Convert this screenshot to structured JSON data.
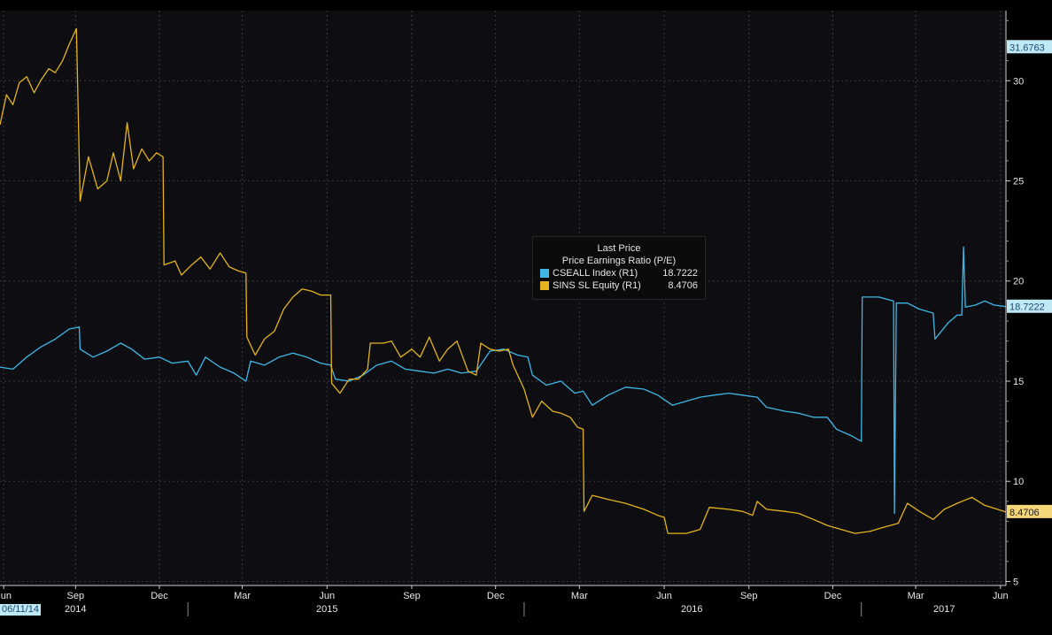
{
  "chart_data": {
    "type": "line",
    "title": "",
    "ylabel": "",
    "y_axis_position": "right",
    "ylim": [
      4.8,
      33.5
    ],
    "y_ticks": [
      5,
      10,
      15,
      20,
      25,
      30
    ],
    "grid": true,
    "x_start": "2014-06-11",
    "x_end": "2017-06-07",
    "x_tick_labels": [
      {
        "date": "2014-06-15",
        "label": "Jun"
      },
      {
        "date": "2014-09-01",
        "label": "Sep"
      },
      {
        "date": "2014-12-01",
        "label": "Dec"
      },
      {
        "date": "2015-03-01",
        "label": "Mar"
      },
      {
        "date": "2015-06-01",
        "label": "Jun"
      },
      {
        "date": "2015-09-01",
        "label": "Sep"
      },
      {
        "date": "2015-12-01",
        "label": "Dec"
      },
      {
        "date": "2016-03-01",
        "label": "Mar"
      },
      {
        "date": "2016-06-01",
        "label": "Jun"
      },
      {
        "date": "2016-09-01",
        "label": "Sep"
      },
      {
        "date": "2016-12-01",
        "label": "Dec"
      },
      {
        "date": "2017-03-01",
        "label": "Mar"
      },
      {
        "date": "2017-06-01",
        "label": "Jun"
      }
    ],
    "year_labels": [
      {
        "date": "2014-09-01",
        "label": "2014"
      },
      {
        "date": "2015-06-01",
        "label": "2015"
      },
      {
        "date": "2016-07-01",
        "label": "2016"
      },
      {
        "date": "2017-04-01",
        "label": "2017"
      }
    ],
    "year_boundaries": [
      "2015-01-01",
      "2016-01-01",
      "2017-01-01"
    ],
    "start_date_label": "06/11/14",
    "legend": {
      "title": "Last Price",
      "subtitle": "Price Earnings Ratio (P/E)",
      "placement": "center"
    },
    "series": [
      {
        "name": "CSEALL Index  (R1)",
        "legend_value": "18.7222",
        "last_label": "18.7222",
        "color": "#3fb7e6",
        "label_bg": "#bfe9f5",
        "label_fg": "#1c4a6e",
        "points": [
          [
            "2014-06-11",
            15.7
          ],
          [
            "2014-06-25",
            15.6
          ],
          [
            "2014-07-10",
            16.2
          ],
          [
            "2014-07-25",
            16.7
          ],
          [
            "2014-08-10",
            17.1
          ],
          [
            "2014-08-25",
            17.6
          ],
          [
            "2014-09-05",
            17.7
          ],
          [
            "2014-09-06",
            16.6
          ],
          [
            "2014-09-20",
            16.2
          ],
          [
            "2014-10-05",
            16.5
          ],
          [
            "2014-10-20",
            16.9
          ],
          [
            "2014-11-01",
            16.6
          ],
          [
            "2014-11-15",
            16.1
          ],
          [
            "2014-12-01",
            16.2
          ],
          [
            "2014-12-15",
            15.9
          ],
          [
            "2015-01-01",
            16.0
          ],
          [
            "2015-01-10",
            15.3
          ],
          [
            "2015-01-20",
            16.2
          ],
          [
            "2015-02-05",
            15.7
          ],
          [
            "2015-02-20",
            15.4
          ],
          [
            "2015-03-05",
            15.0
          ],
          [
            "2015-03-10",
            16.0
          ],
          [
            "2015-03-25",
            15.8
          ],
          [
            "2015-04-10",
            16.2
          ],
          [
            "2015-04-25",
            16.4
          ],
          [
            "2015-05-10",
            16.2
          ],
          [
            "2015-05-25",
            15.9
          ],
          [
            "2015-06-05",
            15.8
          ],
          [
            "2015-06-10",
            15.1
          ],
          [
            "2015-06-25",
            15.0
          ],
          [
            "2015-07-10",
            15.3
          ],
          [
            "2015-07-25",
            15.8
          ],
          [
            "2015-08-10",
            16.0
          ],
          [
            "2015-08-25",
            15.6
          ],
          [
            "2015-09-10",
            15.5
          ],
          [
            "2015-09-25",
            15.4
          ],
          [
            "2015-10-10",
            15.6
          ],
          [
            "2015-10-25",
            15.4
          ],
          [
            "2015-11-10",
            15.5
          ],
          [
            "2015-11-25",
            16.5
          ],
          [
            "2015-12-10",
            16.6
          ],
          [
            "2015-12-25",
            16.3
          ],
          [
            "2016-01-05",
            16.2
          ],
          [
            "2016-01-10",
            15.3
          ],
          [
            "2016-01-25",
            14.8
          ],
          [
            "2016-02-10",
            15.0
          ],
          [
            "2016-02-25",
            14.4
          ],
          [
            "2016-03-05",
            14.5
          ],
          [
            "2016-03-15",
            13.8
          ],
          [
            "2016-04-01",
            14.3
          ],
          [
            "2016-04-20",
            14.7
          ],
          [
            "2016-05-10",
            14.6
          ],
          [
            "2016-05-25",
            14.3
          ],
          [
            "2016-06-10",
            13.8
          ],
          [
            "2016-06-25",
            14.0
          ],
          [
            "2016-07-10",
            14.2
          ],
          [
            "2016-07-25",
            14.3
          ],
          [
            "2016-08-10",
            14.4
          ],
          [
            "2016-08-25",
            14.3
          ],
          [
            "2016-09-10",
            14.2
          ],
          [
            "2016-09-20",
            13.7
          ],
          [
            "2016-10-10",
            13.5
          ],
          [
            "2016-10-25",
            13.4
          ],
          [
            "2016-11-10",
            13.2
          ],
          [
            "2016-11-25",
            13.2
          ],
          [
            "2016-12-05",
            12.6
          ],
          [
            "2016-12-20",
            12.3
          ],
          [
            "2017-01-01",
            12.0
          ],
          [
            "2017-01-02",
            19.2
          ],
          [
            "2017-01-20",
            19.2
          ],
          [
            "2017-02-05",
            19.0
          ],
          [
            "2017-02-06",
            8.4
          ],
          [
            "2017-02-08",
            18.9
          ],
          [
            "2017-02-20",
            18.9
          ],
          [
            "2017-03-05",
            18.6
          ],
          [
            "2017-03-20",
            18.4
          ],
          [
            "2017-03-22",
            17.1
          ],
          [
            "2017-04-05",
            17.9
          ],
          [
            "2017-04-15",
            18.3
          ],
          [
            "2017-04-20",
            18.3
          ],
          [
            "2017-04-22",
            21.7
          ],
          [
            "2017-04-24",
            18.7
          ],
          [
            "2017-05-05",
            18.8
          ],
          [
            "2017-05-15",
            19.0
          ],
          [
            "2017-05-25",
            18.8
          ],
          [
            "2017-06-07",
            18.72
          ]
        ]
      },
      {
        "name": "SINS SL Equity  (R1)",
        "legend_value": "8.4706",
        "last_label": "8.4706",
        "color": "#e2b31e",
        "label_bg": "#f5d77a",
        "label_fg": "#1a1a1a",
        "points": [
          [
            "2014-06-11",
            27.8
          ],
          [
            "2014-06-18",
            29.3
          ],
          [
            "2014-06-25",
            28.8
          ],
          [
            "2014-07-02",
            29.9
          ],
          [
            "2014-07-10",
            30.2
          ],
          [
            "2014-07-18",
            29.4
          ],
          [
            "2014-07-25",
            30.0
          ],
          [
            "2014-08-03",
            30.6
          ],
          [
            "2014-08-10",
            30.4
          ],
          [
            "2014-08-18",
            31.0
          ],
          [
            "2014-08-25",
            31.8
          ],
          [
            "2014-09-02",
            32.6
          ],
          [
            "2014-09-06",
            24.0
          ],
          [
            "2014-09-15",
            26.2
          ],
          [
            "2014-09-25",
            24.6
          ],
          [
            "2014-10-05",
            25.0
          ],
          [
            "2014-10-12",
            26.4
          ],
          [
            "2014-10-20",
            25.0
          ],
          [
            "2014-10-27",
            27.9
          ],
          [
            "2014-11-03",
            25.6
          ],
          [
            "2014-11-12",
            26.6
          ],
          [
            "2014-11-20",
            26.0
          ],
          [
            "2014-11-28",
            26.4
          ],
          [
            "2014-12-05",
            26.2
          ],
          [
            "2014-12-06",
            20.8
          ],
          [
            "2014-12-18",
            21.0
          ],
          [
            "2014-12-25",
            20.3
          ],
          [
            "2015-01-05",
            20.8
          ],
          [
            "2015-01-15",
            21.2
          ],
          [
            "2015-01-25",
            20.6
          ],
          [
            "2015-02-05",
            21.4
          ],
          [
            "2015-02-15",
            20.7
          ],
          [
            "2015-02-25",
            20.5
          ],
          [
            "2015-03-05",
            20.4
          ],
          [
            "2015-03-06",
            17.2
          ],
          [
            "2015-03-15",
            16.3
          ],
          [
            "2015-03-25",
            17.1
          ],
          [
            "2015-04-05",
            17.5
          ],
          [
            "2015-04-15",
            18.6
          ],
          [
            "2015-04-25",
            19.2
          ],
          [
            "2015-05-05",
            19.6
          ],
          [
            "2015-05-15",
            19.5
          ],
          [
            "2015-05-25",
            19.3
          ],
          [
            "2015-06-05",
            19.3
          ],
          [
            "2015-06-06",
            14.9
          ],
          [
            "2015-06-15",
            14.4
          ],
          [
            "2015-06-25",
            15.1
          ],
          [
            "2015-07-05",
            15.1
          ],
          [
            "2015-07-15",
            15.6
          ],
          [
            "2015-07-18",
            16.9
          ],
          [
            "2015-08-01",
            16.9
          ],
          [
            "2015-08-10",
            17.0
          ],
          [
            "2015-08-20",
            16.2
          ],
          [
            "2015-09-01",
            16.6
          ],
          [
            "2015-09-10",
            16.2
          ],
          [
            "2015-09-20",
            17.2
          ],
          [
            "2015-10-01",
            16.0
          ],
          [
            "2015-10-10",
            16.6
          ],
          [
            "2015-10-20",
            17.0
          ],
          [
            "2015-11-01",
            15.5
          ],
          [
            "2015-11-10",
            15.3
          ],
          [
            "2015-11-15",
            16.9
          ],
          [
            "2015-11-25",
            16.6
          ],
          [
            "2015-12-05",
            16.5
          ],
          [
            "2015-12-15",
            16.6
          ],
          [
            "2015-12-20",
            15.8
          ],
          [
            "2016-01-01",
            14.6
          ],
          [
            "2016-01-10",
            13.2
          ],
          [
            "2016-01-20",
            14.0
          ],
          [
            "2016-02-01",
            13.5
          ],
          [
            "2016-02-10",
            13.4
          ],
          [
            "2016-02-20",
            13.2
          ],
          [
            "2016-02-28",
            12.7
          ],
          [
            "2016-03-05",
            12.6
          ],
          [
            "2016-03-06",
            8.5
          ],
          [
            "2016-03-15",
            9.3
          ],
          [
            "2016-04-01",
            9.1
          ],
          [
            "2016-04-20",
            8.9
          ],
          [
            "2016-05-10",
            8.6
          ],
          [
            "2016-05-25",
            8.3
          ],
          [
            "2016-06-01",
            8.2
          ],
          [
            "2016-06-05",
            7.4
          ],
          [
            "2016-06-25",
            7.4
          ],
          [
            "2016-07-10",
            7.6
          ],
          [
            "2016-07-20",
            8.7
          ],
          [
            "2016-08-10",
            8.6
          ],
          [
            "2016-08-25",
            8.5
          ],
          [
            "2016-09-05",
            8.3
          ],
          [
            "2016-09-10",
            9.0
          ],
          [
            "2016-09-20",
            8.6
          ],
          [
            "2016-10-10",
            8.5
          ],
          [
            "2016-10-25",
            8.4
          ],
          [
            "2016-11-10",
            8.1
          ],
          [
            "2016-11-25",
            7.8
          ],
          [
            "2016-12-10",
            7.6
          ],
          [
            "2016-12-25",
            7.4
          ],
          [
            "2017-01-10",
            7.5
          ],
          [
            "2017-01-25",
            7.7
          ],
          [
            "2017-02-10",
            7.9
          ],
          [
            "2017-02-20",
            8.9
          ],
          [
            "2017-03-05",
            8.5
          ],
          [
            "2017-03-20",
            8.1
          ],
          [
            "2017-04-01",
            8.6
          ],
          [
            "2017-04-15",
            8.9
          ],
          [
            "2017-05-01",
            9.2
          ],
          [
            "2017-05-15",
            8.8
          ],
          [
            "2017-06-07",
            8.47
          ]
        ]
      }
    ],
    "y_axis_highlight": "31.6763"
  }
}
